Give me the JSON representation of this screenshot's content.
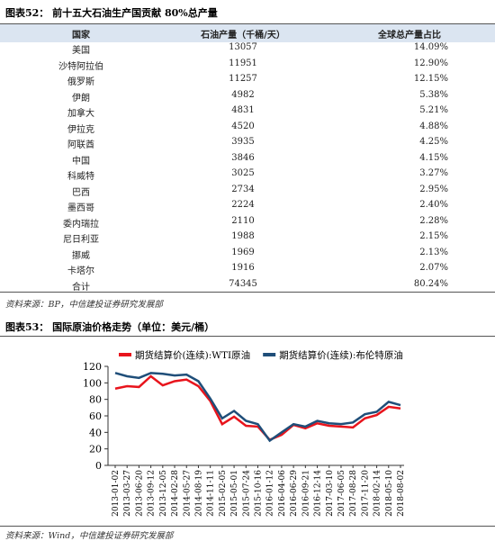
{
  "table_section": {
    "title": "图表52： 前十五大石油生产国贡献 80%总产量",
    "columns": [
      "国家",
      "石油产量（千桶/天）",
      "全球总产量占比"
    ],
    "rows": [
      [
        "美国",
        "13057",
        "14.09%"
      ],
      [
        "沙特阿拉伯",
        "11951",
        "12.90%"
      ],
      [
        "俄罗斯",
        "11257",
        "12.15%"
      ],
      [
        "伊朗",
        "4982",
        "5.38%"
      ],
      [
        "加拿大",
        "4831",
        "5.21%"
      ],
      [
        "伊拉克",
        "4520",
        "4.88%"
      ],
      [
        "阿联酋",
        "3935",
        "4.25%"
      ],
      [
        "中国",
        "3846",
        "4.15%"
      ],
      [
        "科威特",
        "3025",
        "3.27%"
      ],
      [
        "巴西",
        "2734",
        "2.95%"
      ],
      [
        "墨西哥",
        "2224",
        "2.40%"
      ],
      [
        "委内瑞拉",
        "2110",
        "2.28%"
      ],
      [
        "尼日利亚",
        "1988",
        "2.15%"
      ],
      [
        "挪威",
        "1969",
        "2.13%"
      ],
      [
        "卡塔尔",
        "1916",
        "2.07%"
      ],
      [
        "合计",
        "74345",
        "80.24%"
      ]
    ],
    "source": "资料来源：BP，中信建投证券研究发展部"
  },
  "chart_data": {
    "type": "line",
    "title": "图表53： 国际原油价格走势（单位：美元/桶）",
    "x": [
      "2013-01-02",
      "2013-03-27",
      "2013-06-20",
      "2013-09-12",
      "2013-12-05",
      "2014-02-28",
      "2014-05-27",
      "2014-08-19",
      "2014-11-11",
      "2015-02-05",
      "2015-05-01",
      "2015-07-24",
      "2015-10-16",
      "2016-01-12",
      "2016-04-06",
      "2016-06-29",
      "2016-09-21",
      "2016-12-14",
      "2017-03-10",
      "2017-06-05",
      "2017-08-28",
      "2017-11-20",
      "2018-02-14",
      "2018-05-10",
      "2018-08-02"
    ],
    "series": [
      {
        "name": "期货结算价(连续):WTI原油",
        "color": "#e8141c",
        "values": [
          93,
          96,
          95,
          108,
          97,
          102,
          104,
          96,
          78,
          50,
          59,
          48,
          47,
          31,
          37,
          49,
          45,
          51,
          48,
          47,
          46,
          57,
          61,
          71,
          69
        ]
      },
      {
        "name": "期货结算价(连续):布伦特原油",
        "color": "#1f4e79",
        "values": [
          112,
          108,
          106,
          112,
          111,
          109,
          110,
          102,
          81,
          57,
          66,
          54,
          50,
          30,
          40,
          50,
          47,
          54,
          51,
          50,
          52,
          62,
          65,
          77,
          73
        ]
      }
    ],
    "ylim": [
      0,
      120
    ],
    "yticks": [
      0,
      20,
      40,
      60,
      80,
      100,
      120
    ],
    "grid": false,
    "legend": "top"
  },
  "chart_source": "资料来源：Wind，中信建投证券研究发展部"
}
